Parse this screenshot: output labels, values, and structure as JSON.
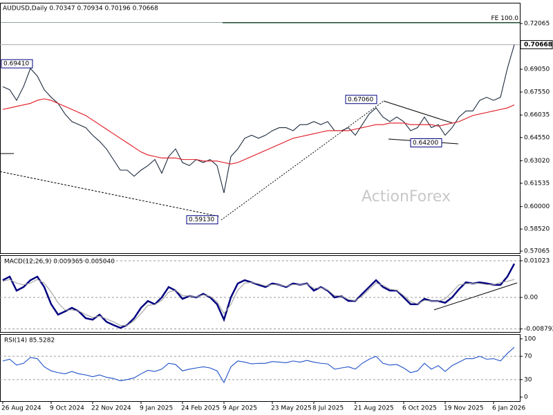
{
  "chart_data": [
    {
      "type": "line",
      "title": "AUDUSD,Daily  0.70347 0.70934 0.70196 0.70668",
      "watermark": "ActionForex",
      "fe_line": 0.7212,
      "fe_label": "FE 100.0",
      "current": {
        "value": 0.70668,
        "label": "0.70668"
      },
      "annotations": [
        {
          "value": 0.6941,
          "label": "0.69410"
        },
        {
          "value": 0.5913,
          "label": "0.59130"
        },
        {
          "value": 0.6706,
          "label": "0.67060"
        },
        {
          "value": 0.642,
          "label": "0.64200"
        }
      ],
      "ylim": [
        0.5693,
        0.7343
      ],
      "yticks": [
        0.72065,
        {
          "value": 0.6905,
          "label": "0.69050"
        },
        {
          "value": 0.6755,
          "label": "0.67550"
        },
        0.66035,
        {
          "value": 0.6455,
          "label": "0.64550"
        },
        {
          "value": 0.6302,
          "label": "0.63020"
        },
        0.61535,
        {
          "value": 0.6,
          "label": "0.60000"
        },
        {
          "value": 0.5852,
          "label": "0.58520"
        },
        0.57065
      ],
      "series": [
        {
          "color": "#1c2a3c",
          "values": [
            0.679,
            0.677,
            0.67,
            0.679,
            0.691,
            0.686,
            0.677,
            0.672,
            0.668,
            0.661,
            0.656,
            0.654,
            0.652,
            0.647,
            0.643,
            0.638,
            0.631,
            0.624,
            0.624,
            0.62,
            0.624,
            0.627,
            0.631,
            0.622,
            0.633,
            0.638,
            0.629,
            0.627,
            0.631,
            0.629,
            0.631,
            0.627,
            0.609,
            0.633,
            0.638,
            0.645,
            0.647,
            0.645,
            0.647,
            0.65,
            0.652,
            0.652,
            0.65,
            0.654,
            0.654,
            0.656,
            0.654,
            0.656,
            0.65,
            0.65,
            0.652,
            0.647,
            0.654,
            0.661,
            0.665,
            0.659,
            0.656,
            0.659,
            0.656,
            0.65,
            0.652,
            0.659,
            0.652,
            0.654,
            0.647,
            0.652,
            0.659,
            0.663,
            0.663,
            0.67,
            0.672,
            0.67,
            0.672,
            0.691,
            0.7067
          ]
        },
        {
          "color": "#e0141e",
          "values": [
            0.664,
            0.665,
            0.666,
            0.667,
            0.668,
            0.67,
            0.671,
            0.67,
            0.668,
            0.666,
            0.664,
            0.662,
            0.66,
            0.657,
            0.654,
            0.651,
            0.648,
            0.645,
            0.642,
            0.639,
            0.636,
            0.634,
            0.633,
            0.632,
            0.632,
            0.632,
            0.631,
            0.631,
            0.631,
            0.63,
            0.63,
            0.63,
            0.629,
            0.628,
            0.629,
            0.631,
            0.633,
            0.635,
            0.637,
            0.639,
            0.641,
            0.643,
            0.645,
            0.646,
            0.647,
            0.648,
            0.649,
            0.65,
            0.65,
            0.65,
            0.65,
            0.651,
            0.652,
            0.653,
            0.654,
            0.654,
            0.655,
            0.655,
            0.655,
            0.654,
            0.654,
            0.654,
            0.654,
            0.653,
            0.654,
            0.655,
            0.656,
            0.658,
            0.66,
            0.661,
            0.662,
            0.663,
            0.664,
            0.665,
            0.667
          ]
        }
      ]
    },
    {
      "type": "line",
      "title": "MACD(12,26,9) 0.009365 0.005040",
      "ylim": [
        -0.00965,
        0.01158
      ],
      "yticks": [
        0.01023,
        {
          "value": 0,
          "label": "0.00"
        },
        -0.008792
      ],
      "series": [
        {
          "color": "#000080",
          "values": [
            0.0048,
            0.0058,
            0.0019,
            0.0029,
            0.0048,
            0.0058,
            0.0029,
            -0.0019,
            -0.0048,
            -0.0039,
            -0.0029,
            -0.0039,
            -0.0058,
            -0.0062,
            -0.0048,
            -0.0068,
            -0.0077,
            -0.0085,
            -0.0077,
            -0.0058,
            -0.0029,
            -0.001,
            -0.0019,
            0,
            0.0029,
            0.0019,
            -0.0004,
            0.0004,
            0,
            0.001,
            0,
            -0.0019,
            -0.0062,
            0,
            0.0039,
            0.0048,
            0.0042,
            0.0035,
            0.0029,
            0.0039,
            0.0035,
            0.0029,
            0.0039,
            0.0035,
            0.0039,
            0.0019,
            0.0029,
            0.0019,
            0,
            0.0004,
            -0.001,
            -0.001,
            0.001,
            0.0029,
            0.0048,
            0.0029,
            0.0019,
            0.0019,
            0,
            -0.0019,
            -0.0019,
            -0.0004,
            -0.001,
            -0.001,
            -0.0015,
            0,
            0.0023,
            0.0042,
            0.0039,
            0.0042,
            0.0039,
            0.0035,
            0.0035,
            0.0058,
            0.0094
          ]
        },
        {
          "color": "#a0a0a0",
          "values": [
            0.0045,
            0.005,
            0.004,
            0.0035,
            0.004,
            0.005,
            0.004,
            0.0015,
            -0.0015,
            -0.0035,
            -0.0035,
            -0.0038,
            -0.0048,
            -0.0056,
            -0.0052,
            -0.006,
            -0.0068,
            -0.0078,
            -0.0078,
            -0.0065,
            -0.0045,
            -0.0022,
            -0.002,
            -0.0008,
            0.0015,
            0.002,
            0.0005,
            0.0004,
            0.0001,
            0.0007,
            0.0003,
            -0.0012,
            -0.0045,
            -0.002,
            0.002,
            0.004,
            0.0042,
            0.0038,
            0.0032,
            0.0036,
            0.0035,
            0.0031,
            0.0036,
            0.0035,
            0.0038,
            0.0025,
            0.0027,
            0.0021,
            0.0005,
            0.0004,
            -0.0006,
            -0.0009,
            0.0004,
            0.0022,
            0.004,
            0.0034,
            0.0023,
            0.002,
            0.0005,
            -0.0012,
            -0.0018,
            -0.0008,
            -0.001,
            -0.001,
            -0.0004,
            0.0015,
            0.0035,
            0.0038,
            0.004,
            0.0039,
            0.0036,
            0.0035,
            0.0042,
            0.0045,
            0.005
          ]
        }
      ]
    },
    {
      "type": "line",
      "title": "RSI(14) 85.5282",
      "ylim": [
        -7,
        107
      ],
      "yticks": [
        100,
        70,
        30,
        0
      ],
      "categories": [
        "26 Aug 2024",
        null,
        null,
        null,
        null,
        null,
        null,
        "9 Oct 2024",
        null,
        null,
        null,
        null,
        null,
        "22 Nov 2024",
        null,
        null,
        null,
        null,
        null,
        null,
        "9 Jan 2025",
        null,
        null,
        null,
        null,
        null,
        "24 Feb 2025",
        null,
        null,
        null,
        null,
        null,
        "9 Apr 2025",
        null,
        null,
        null,
        null,
        null,
        null,
        "23 May 2025",
        null,
        null,
        null,
        null,
        null,
        "8 Jul 2025",
        null,
        null,
        null,
        null,
        null,
        "21 Aug 2025",
        null,
        null,
        null,
        null,
        null,
        null,
        "6 Oct 2025",
        null,
        null,
        null,
        null,
        null,
        "19 Nov 2025",
        null,
        null,
        null,
        null,
        null,
        null,
        "6 Jan 2026",
        null,
        null,
        null
      ],
      "series": [
        {
          "color": "#1e50c8",
          "values": [
            62,
            65,
            55,
            58,
            68,
            66,
            52,
            45,
            42,
            40,
            44,
            40,
            38,
            35,
            38,
            34,
            32,
            28,
            30,
            33,
            40,
            46,
            44,
            48,
            58,
            56,
            45,
            48,
            50,
            52,
            50,
            45,
            25,
            52,
            62,
            60,
            57,
            58,
            58,
            61,
            60,
            59,
            62,
            60,
            63,
            60,
            58,
            57,
            48,
            50,
            52,
            48,
            58,
            65,
            70,
            58,
            55,
            56,
            50,
            42,
            45,
            58,
            48,
            54,
            44,
            54,
            60,
            66,
            66,
            70,
            65,
            66,
            62,
            75,
            85.5282
          ]
        }
      ]
    }
  ]
}
